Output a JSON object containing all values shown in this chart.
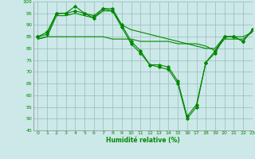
{
  "xlabel": "Humidité relative (%)",
  "xlim": [
    -0.5,
    23
  ],
  "ylim": [
    45,
    100
  ],
  "yticks": [
    45,
    50,
    55,
    60,
    65,
    70,
    75,
    80,
    85,
    90,
    95,
    100
  ],
  "xticks": [
    0,
    1,
    2,
    3,
    4,
    5,
    6,
    7,
    8,
    9,
    10,
    11,
    12,
    13,
    14,
    15,
    16,
    17,
    18,
    19,
    20,
    21,
    22,
    23
  ],
  "bg_color": "#cce8e8",
  "line_color": "#008800",
  "grid_color": "#99bbbb",
  "lines": [
    [
      85,
      87,
      95,
      95,
      96,
      95,
      94,
      97,
      96,
      89,
      82,
      78,
      73,
      72,
      71,
      65,
      50,
      55,
      74,
      78,
      85,
      85,
      83,
      88
    ],
    [
      85,
      86,
      95,
      95,
      98,
      95,
      93,
      97,
      97,
      90,
      83,
      79,
      73,
      73,
      72,
      66,
      51,
      56,
      74,
      79,
      85,
      85,
      83,
      88
    ],
    [
      84,
      85,
      94,
      94,
      95,
      94,
      93,
      96,
      96,
      90,
      88,
      87,
      86,
      85,
      84,
      83,
      82,
      81,
      80,
      80,
      85,
      85,
      85,
      87
    ],
    [
      84,
      85,
      85,
      85,
      85,
      85,
      85,
      85,
      84,
      84,
      84,
      83,
      83,
      83,
      83,
      82,
      82,
      82,
      81,
      79,
      84,
      84,
      84,
      87
    ]
  ]
}
